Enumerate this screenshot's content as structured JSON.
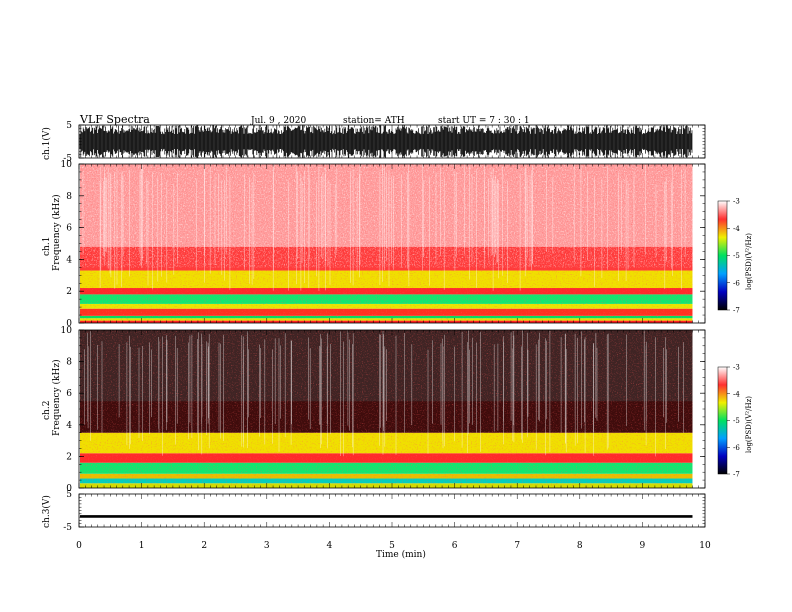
{
  "header": {
    "title": "VLF  Spectra",
    "date": "Jul.  9  , 2020",
    "station": "station= ATH",
    "start": "start  UT  =   7  : 30 : 1"
  },
  "chart_data": {
    "type": "heatmap",
    "panels": [
      {
        "name": "ch.1(V)",
        "kind": "waveform",
        "ylabel": "ch.1(V)",
        "ylim": [
          -5,
          5
        ],
        "ticks": [
          "5",
          "-5"
        ],
        "amplitude": 5
      },
      {
        "name": "ch.1 spectrogram",
        "kind": "spectrogram",
        "ylabel_top": "ch.1",
        "ylabel": "Frequency  (kHz)",
        "ylim": [
          0,
          10
        ],
        "ticks": [
          "0",
          "2",
          "4",
          "6",
          "8",
          "10"
        ],
        "bands": [
          {
            "from": 0.0,
            "to": 0.15,
            "color": "#ff2020"
          },
          {
            "from": 0.15,
            "to": 0.3,
            "color": "#e6e600"
          },
          {
            "from": 0.3,
            "to": 0.45,
            "color": "#00e060"
          },
          {
            "from": 0.45,
            "to": 0.9,
            "color": "#ff3020"
          },
          {
            "from": 0.9,
            "to": 1.2,
            "color": "#e8e800"
          },
          {
            "from": 1.2,
            "to": 1.8,
            "color": "#10e870"
          },
          {
            "from": 1.8,
            "to": 2.2,
            "color": "#ff2a2a"
          },
          {
            "from": 2.2,
            "to": 3.3,
            "color": "#f0e000"
          },
          {
            "from": 3.3,
            "to": 4.8,
            "color": "#ff3a3a"
          },
          {
            "from": 4.8,
            "to": 10.0,
            "color": "#ff9a9a"
          }
        ]
      },
      {
        "name": "ch.2 spectrogram",
        "kind": "spectrogram",
        "ylabel_top": "ch.2",
        "ylabel": "Frequency  (kHz)",
        "ylim": [
          0,
          10
        ],
        "ticks": [
          "0",
          "2",
          "4",
          "6",
          "8",
          "10"
        ],
        "bands": [
          {
            "from": 0.0,
            "to": 0.3,
            "color": "#d0e000"
          },
          {
            "from": 0.3,
            "to": 0.6,
            "color": "#00d0c0"
          },
          {
            "from": 0.6,
            "to": 0.9,
            "color": "#e8c000"
          },
          {
            "from": 0.9,
            "to": 1.6,
            "color": "#10e870"
          },
          {
            "from": 1.6,
            "to": 2.2,
            "color": "#ff2a2a"
          },
          {
            "from": 2.2,
            "to": 3.5,
            "color": "#f0e000"
          },
          {
            "from": 3.5,
            "to": 5.5,
            "color": "#ff3030"
          },
          {
            "from": 5.5,
            "to": 10.0,
            "color": "#ff9090"
          }
        ]
      },
      {
        "name": "ch.3(V)",
        "kind": "waveform",
        "ylabel": "ch.3(V)",
        "ylim": [
          -5,
          5
        ],
        "ticks": [
          "5",
          "-5"
        ],
        "amplitude": 0.4,
        "offset": -1.8
      }
    ],
    "xlabel": "Time  (min)",
    "xlim": [
      0,
      10
    ],
    "xticks": [
      "0",
      "1",
      "2",
      "3",
      "4",
      "5",
      "6",
      "7",
      "8",
      "9",
      "10"
    ],
    "data_end": 9.8,
    "colorbar": {
      "label": "log(PSD)(V²/Hz)",
      "range": [
        -7,
        -3
      ],
      "ticks": [
        "-3",
        "-4",
        "-5",
        "-6",
        "-7"
      ],
      "colors": [
        "#ffffff",
        "#ff3030",
        "#f0f000",
        "#00e060",
        "#00a0ff",
        "#0000c0",
        "#000000"
      ]
    }
  }
}
